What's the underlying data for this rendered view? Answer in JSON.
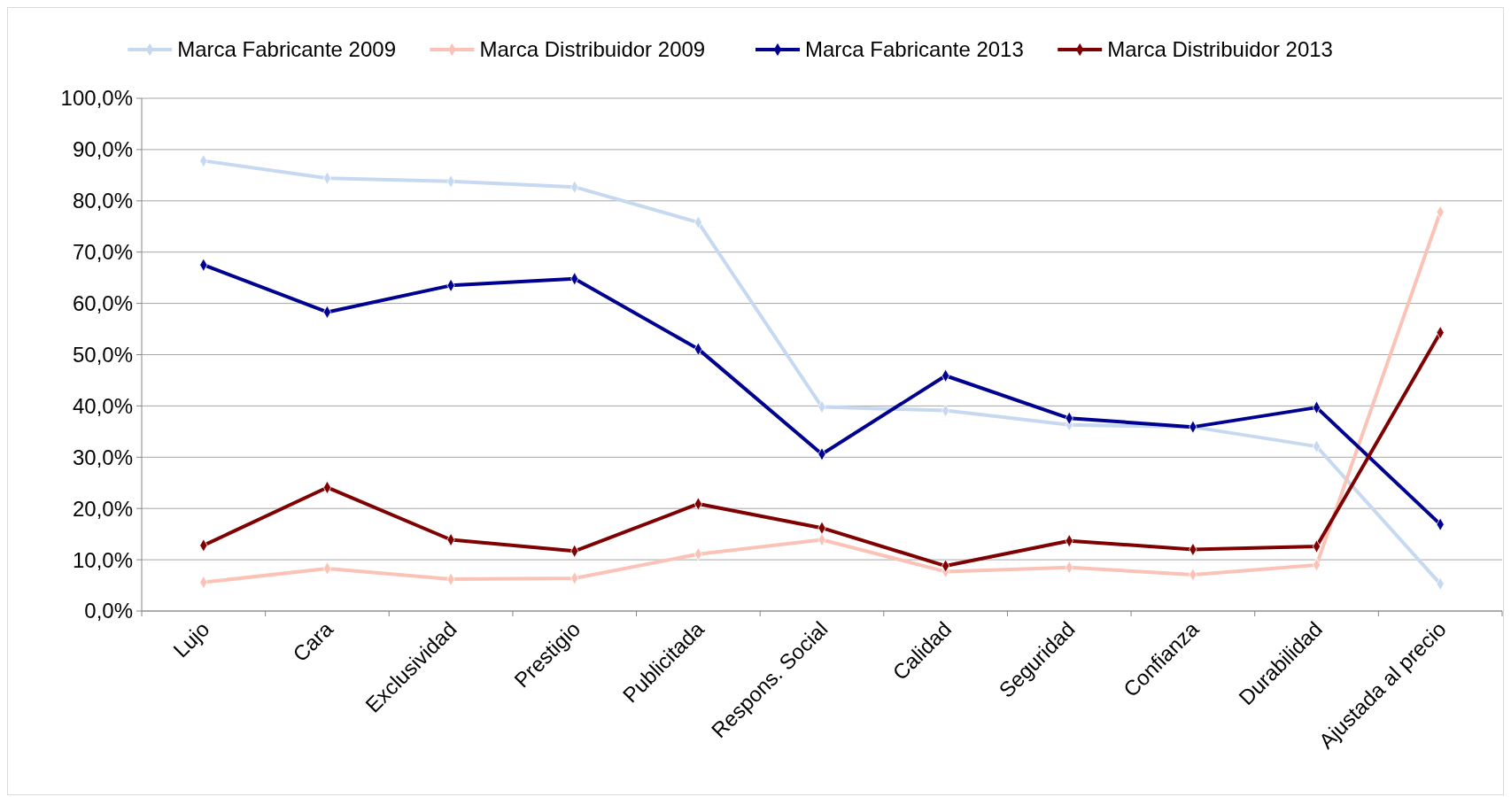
{
  "chart_data": {
    "type": "line",
    "categories": [
      "Lujo",
      "Cara",
      "Exclusividad",
      "Prestigio",
      "Publicitada",
      "Respons. Social",
      "Calidad",
      "Seguridad",
      "Confianza",
      "Durabilidad",
      "Ajustada al precio"
    ],
    "series": [
      {
        "name": "Marca Fabricante 2009",
        "color": "#c6d9f1",
        "values": [
          87.8,
          84.4,
          83.8,
          82.7,
          75.8,
          39.8,
          39.1,
          36.3,
          35.9,
          32.1,
          5.3
        ]
      },
      {
        "name": "Marca Distribuidor 2009",
        "color": "#fbc3b7",
        "values": [
          5.6,
          8.3,
          6.2,
          6.4,
          11.1,
          13.9,
          7.7,
          8.5,
          7.1,
          9.0,
          77.8
        ]
      },
      {
        "name": "Marca Fabricante 2013",
        "color": "#000090",
        "values": [
          67.5,
          58.3,
          63.5,
          64.8,
          51.1,
          30.6,
          45.9,
          37.6,
          35.9,
          39.7,
          16.9
        ]
      },
      {
        "name": "Marca Distribuidor 2013",
        "color": "#7f0000",
        "values": [
          12.8,
          24.1,
          13.9,
          11.7,
          20.9,
          16.2,
          8.8,
          13.7,
          12.0,
          12.6,
          54.3
        ]
      }
    ],
    "ylim": [
      0,
      100
    ],
    "yticks": [
      {
        "value": 0,
        "label": "0,0%"
      },
      {
        "value": 10,
        "label": "10,0%"
      },
      {
        "value": 20,
        "label": "20,0%"
      },
      {
        "value": 30,
        "label": "30,0%"
      },
      {
        "value": 40,
        "label": "40,0%"
      },
      {
        "value": 50,
        "label": "50,0%"
      },
      {
        "value": 60,
        "label": "60,0%"
      },
      {
        "value": 70,
        "label": "70,0%"
      },
      {
        "value": 80,
        "label": "80,0%"
      },
      {
        "value": 90,
        "label": "90,0%"
      },
      {
        "value": 100,
        "label": "100,0%"
      }
    ],
    "grid": "y",
    "legend": "top",
    "marker": "diamond",
    "line_style": "solid"
  }
}
